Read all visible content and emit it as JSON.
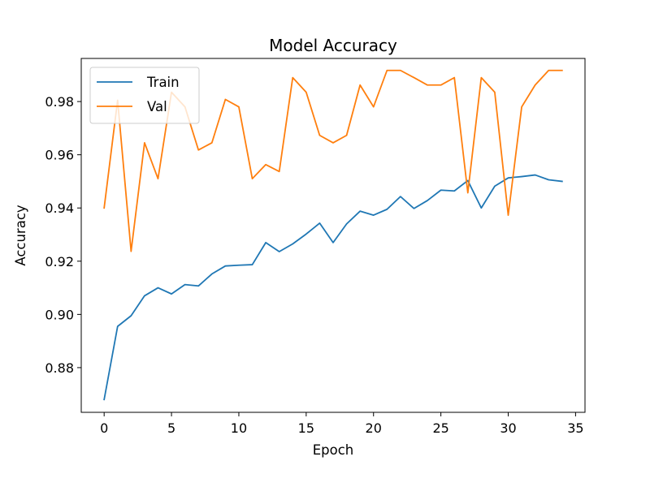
{
  "chart_data": {
    "type": "line",
    "title": "Model Accuracy",
    "xlabel": "Epoch",
    "ylabel": "Accuracy",
    "xlim": [
      -1.7,
      35.7
    ],
    "ylim": [
      0.8632,
      0.9962
    ],
    "xticks": [
      0,
      5,
      10,
      15,
      20,
      25,
      30,
      35
    ],
    "yticks": [
      0.88,
      0.9,
      0.92,
      0.94,
      0.96,
      0.98
    ],
    "xtick_labels": [
      "0",
      "5",
      "10",
      "15",
      "20",
      "25",
      "30",
      "35"
    ],
    "ytick_labels": [
      "0.88",
      "0.90",
      "0.92",
      "0.94",
      "0.96",
      "0.98"
    ],
    "grid": false,
    "legend": "upper-left",
    "x": [
      0,
      1,
      2,
      3,
      4,
      5,
      6,
      7,
      8,
      9,
      10,
      11,
      12,
      13,
      14,
      15,
      16,
      17,
      18,
      19,
      20,
      21,
      22,
      23,
      24,
      25,
      26,
      27,
      28,
      29,
      30,
      31,
      32,
      33,
      34
    ],
    "series": [
      {
        "name": "Train",
        "color": "#1f77b4",
        "values": [
          0.868,
          0.8955,
          0.8995,
          0.907,
          0.91,
          0.9077,
          0.9112,
          0.9107,
          0.9152,
          0.9182,
          0.9185,
          0.9187,
          0.927,
          0.9236,
          0.9265,
          0.9302,
          0.9343,
          0.927,
          0.934,
          0.9388,
          0.9373,
          0.9395,
          0.9443,
          0.9398,
          0.9428,
          0.9467,
          0.9464,
          0.9503,
          0.94,
          0.9482,
          0.9513,
          0.9518,
          0.9524,
          0.9506,
          0.95
        ]
      },
      {
        "name": "Val",
        "color": "#ff7f0e",
        "values": [
          0.94,
          0.9805,
          0.9237,
          0.9645,
          0.951,
          0.9835,
          0.978,
          0.9618,
          0.9645,
          0.9808,
          0.978,
          0.951,
          0.9563,
          0.9537,
          0.989,
          0.9835,
          0.9673,
          0.9645,
          0.9673,
          0.9862,
          0.978,
          0.9917,
          0.9917,
          0.989,
          0.9862,
          0.9862,
          0.989,
          0.9457,
          0.989,
          0.9835,
          0.9373,
          0.978,
          0.9862,
          0.9917,
          0.9917
        ]
      }
    ]
  }
}
